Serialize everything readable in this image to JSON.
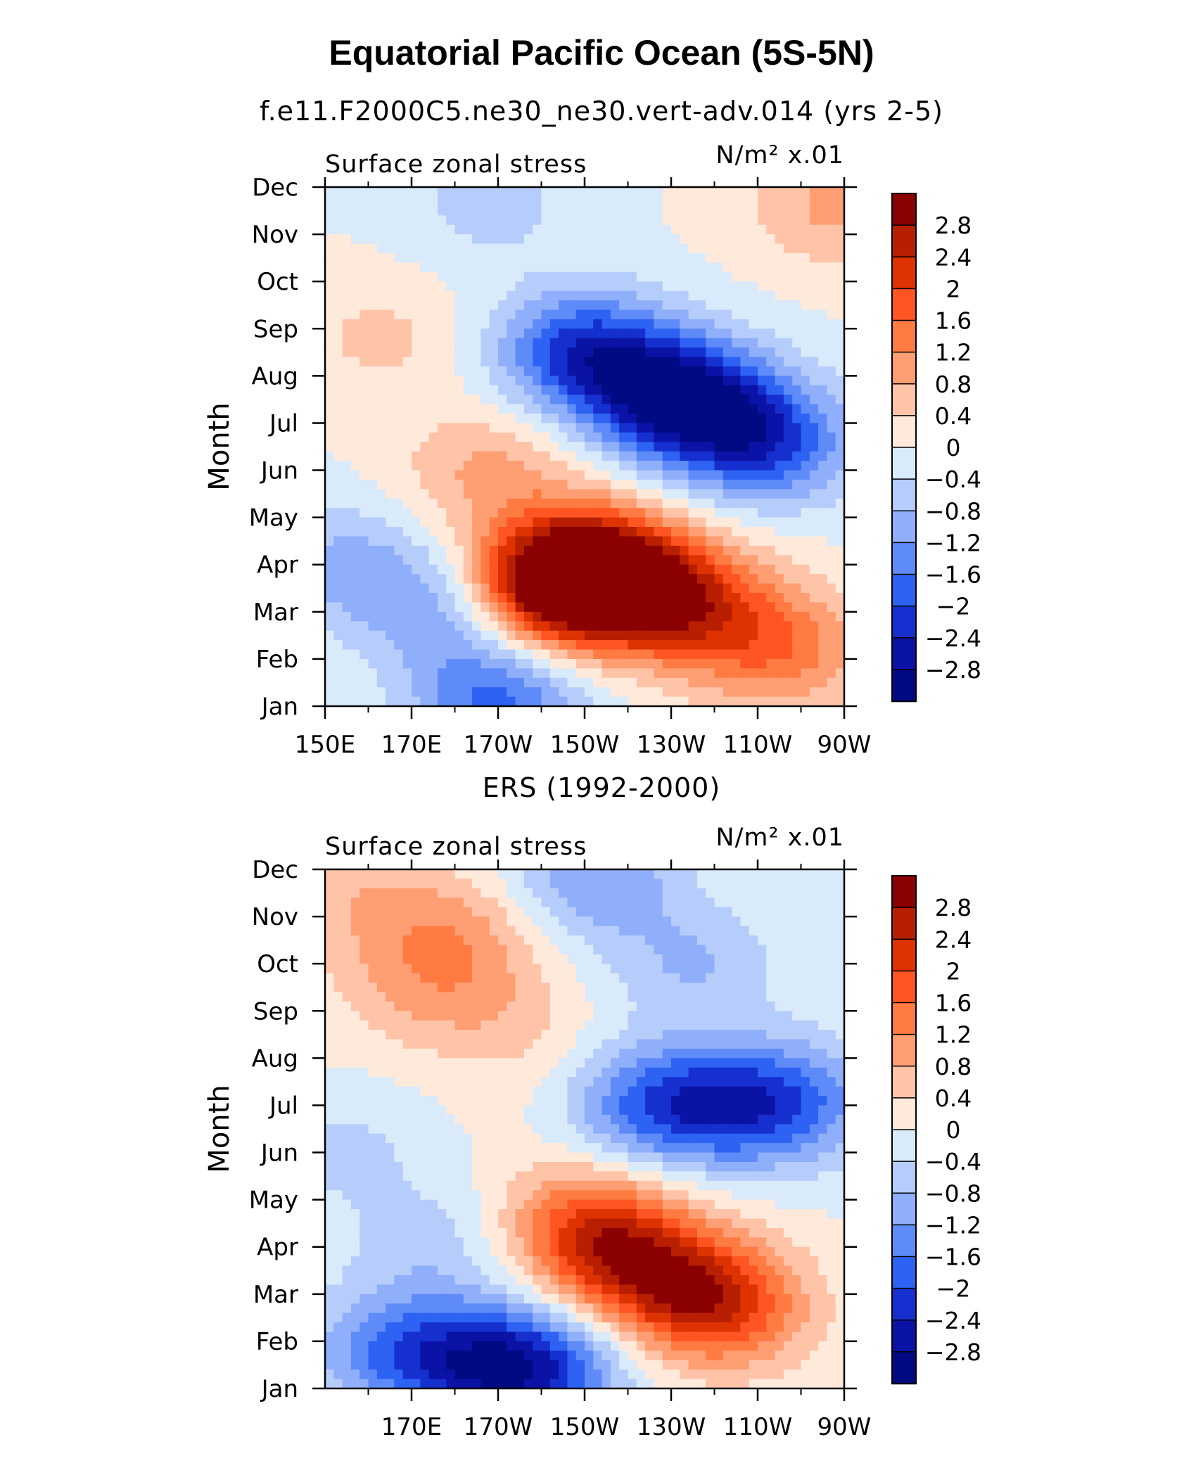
{
  "figure": {
    "title": "Equatorial Pacific Ocean (5S-5N)"
  },
  "chart_data": [
    {
      "type": "heatmap",
      "subtitle": "f.e11.F2000C5.ne30_ne30.vert-adv.014 (yrs 2-5)",
      "left_label": "Surface zonal stress",
      "units": "N/m² x.01",
      "ylabel": "Month",
      "x_ticks": [
        "150E",
        "170E",
        "170W",
        "150W",
        "130W",
        "110W",
        "90W"
      ],
      "x_tick_lons": [
        150,
        170,
        190,
        210,
        230,
        250,
        270
      ],
      "y_ticks": [
        "Jan",
        "Feb",
        "Mar",
        "Apr",
        "May",
        "Jun",
        "Jul",
        "Aug",
        "Sep",
        "Oct",
        "Nov",
        "Dec"
      ],
      "xlim": [
        150,
        270
      ],
      "ylim": [
        1,
        12
      ],
      "levels": [
        "2.8",
        "2.4",
        "2",
        "1.6",
        "1.2",
        "0.8",
        "0.4",
        "0",
        "-0.4",
        "-0.8",
        "-1.2",
        "-1.6",
        "-2",
        "-2.4",
        "-2.8"
      ],
      "features": [
        {
          "lon": 212,
          "month": 3.9,
          "value": 3.0
        },
        {
          "lon": 203,
          "month": 3.5,
          "value": 2.5
        },
        {
          "lon": 232,
          "month": 3.2,
          "value": 2.2
        },
        {
          "lon": 255,
          "month": 2.2,
          "value": 1.4
        },
        {
          "lon": 188,
          "month": 6.0,
          "value": 0.9
        },
        {
          "lon": 163,
          "month": 8.8,
          "value": 0.5
        },
        {
          "lon": 155,
          "month": 4.0,
          "value": -0.9
        },
        {
          "lon": 177,
          "month": 3.0,
          "value": -1.0
        },
        {
          "lon": 190,
          "month": 1.1,
          "value": -1.7
        },
        {
          "lon": 188,
          "month": 11.7,
          "value": -0.6
        },
        {
          "lon": 232,
          "month": 7.5,
          "value": -3.0
        },
        {
          "lon": 252,
          "month": 6.6,
          "value": -2.0
        },
        {
          "lon": 210,
          "month": 8.5,
          "value": -2.2
        },
        {
          "lon": 268,
          "month": 11.6,
          "value": 0.9
        }
      ]
    },
    {
      "type": "heatmap",
      "subtitle": "ERS (1992-2000)",
      "left_label": "Surface zonal stress",
      "units": "N/m² x.01",
      "ylabel": "Month",
      "x_ticks": [
        "170E",
        "170W",
        "150W",
        "130W",
        "110W",
        "90W"
      ],
      "x_tick_lons": [
        170,
        190,
        210,
        230,
        250,
        270
      ],
      "y_ticks": [
        "Jan",
        "Feb",
        "Mar",
        "Apr",
        "May",
        "Jun",
        "Jul",
        "Aug",
        "Sep",
        "Oct",
        "Nov",
        "Dec"
      ],
      "xlim": [
        150,
        270
      ],
      "ylim": [
        1,
        12
      ],
      "levels": [
        "2.8",
        "2.4",
        "2",
        "1.6",
        "1.2",
        "0.8",
        "0.4",
        "0",
        "-0.4",
        "-0.8",
        "-1.2",
        "-1.6",
        "-2",
        "-2.4",
        "-2.8"
      ],
      "features": [
        {
          "lon": 218,
          "month": 3.8,
          "value": 1.8
        },
        {
          "lon": 235,
          "month": 3.0,
          "value": 1.8
        },
        {
          "lon": 210,
          "month": 4.6,
          "value": 1.2
        },
        {
          "lon": 245,
          "month": 2.6,
          "value": 1.0
        },
        {
          "lon": 180,
          "month": 10.7,
          "value": 0.9
        },
        {
          "lon": 170,
          "month": 9.5,
          "value": 0.6
        },
        {
          "lon": 190,
          "month": 9.0,
          "value": 0.5
        },
        {
          "lon": 155,
          "month": 11.5,
          "value": 0.6
        },
        {
          "lon": 200,
          "month": 7.5,
          "value": 0.2
        },
        {
          "lon": 185,
          "month": 1.5,
          "value": -1.6
        },
        {
          "lon": 200,
          "month": 1.4,
          "value": -1.8
        },
        {
          "lon": 165,
          "month": 1.8,
          "value": -1.3
        },
        {
          "lon": 212,
          "month": 11.8,
          "value": -1.2
        },
        {
          "lon": 225,
          "month": 7.0,
          "value": -1.6
        },
        {
          "lon": 245,
          "month": 7.0,
          "value": -1.5
        },
        {
          "lon": 260,
          "month": 7.1,
          "value": -1.1
        },
        {
          "lon": 235,
          "month": 10.0,
          "value": -0.8
        },
        {
          "lon": 155,
          "month": 6.0,
          "value": -0.5
        },
        {
          "lon": 175,
          "month": 4.0,
          "value": -0.6
        }
      ]
    }
  ]
}
